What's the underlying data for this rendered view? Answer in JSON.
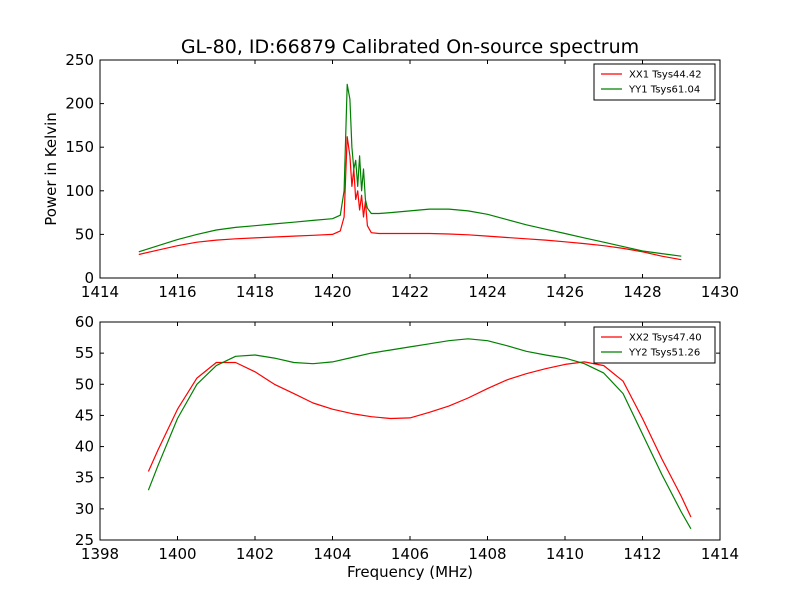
{
  "chart_data": [
    {
      "type": "line",
      "title": "GL-80, ID:66879 Calibrated On-source spectrum",
      "xlabel": "",
      "ylabel": "Power in Kelvin",
      "xlim": [
        1414,
        1430
      ],
      "ylim": [
        0,
        250
      ],
      "xticks": [
        1414,
        1416,
        1418,
        1420,
        1422,
        1424,
        1426,
        1428,
        1430
      ],
      "yticks": [
        0,
        50,
        100,
        150,
        200,
        250
      ],
      "legend_position": "upper right",
      "grid": false,
      "series": [
        {
          "name": "XX1 Tsys44.42",
          "color": "#ff0000",
          "x": [
            1415.0,
            1415.5,
            1416.0,
            1416.5,
            1417.0,
            1417.5,
            1418.0,
            1418.5,
            1419.0,
            1419.5,
            1420.0,
            1420.2,
            1420.3,
            1420.38,
            1420.45,
            1420.5,
            1420.55,
            1420.6,
            1420.65,
            1420.7,
            1420.75,
            1420.8,
            1420.85,
            1420.9,
            1421.0,
            1421.2,
            1421.5,
            1422.0,
            1422.5,
            1423.0,
            1423.5,
            1424.0,
            1424.5,
            1425.0,
            1425.5,
            1426.0,
            1426.5,
            1427.0,
            1427.5,
            1428.0,
            1428.5,
            1429.0
          ],
          "y": [
            27,
            32,
            37,
            41,
            43.5,
            45,
            46,
            47,
            48,
            49,
            50,
            54,
            70,
            162,
            140,
            105,
            125,
            90,
            100,
            78,
            95,
            70,
            88,
            60,
            52,
            51,
            51,
            51,
            51,
            50.5,
            49.5,
            48,
            46.5,
            45,
            43.5,
            41.5,
            39.5,
            37,
            34,
            30,
            25,
            21
          ]
        },
        {
          "name": "YY1 Tsys61.04",
          "color": "#008000",
          "x": [
            1415.0,
            1415.5,
            1416.0,
            1416.5,
            1417.0,
            1417.5,
            1418.0,
            1418.5,
            1419.0,
            1419.5,
            1420.0,
            1420.2,
            1420.3,
            1420.38,
            1420.45,
            1420.5,
            1420.55,
            1420.6,
            1420.65,
            1420.7,
            1420.75,
            1420.8,
            1420.85,
            1420.9,
            1421.0,
            1421.2,
            1421.5,
            1422.0,
            1422.5,
            1423.0,
            1423.5,
            1424.0,
            1424.5,
            1425.0,
            1425.5,
            1426.0,
            1426.5,
            1427.0,
            1427.5,
            1428.0,
            1428.5,
            1429.0
          ],
          "y": [
            30,
            37,
            44,
            50,
            55,
            58,
            60,
            62,
            64,
            66,
            68,
            72,
            100,
            222,
            205,
            150,
            125,
            135,
            105,
            140,
            100,
            125,
            90,
            80,
            74,
            74,
            75,
            77,
            79,
            79,
            77,
            73,
            67,
            61,
            56,
            51,
            46,
            41,
            36,
            31,
            28,
            25
          ]
        }
      ]
    },
    {
      "type": "line",
      "title": "",
      "xlabel": "Frequency (MHz)",
      "ylabel": "",
      "xlim": [
        1398,
        1414
      ],
      "ylim": [
        25,
        60
      ],
      "xticks": [
        1398,
        1400,
        1402,
        1404,
        1406,
        1408,
        1410,
        1412,
        1414
      ],
      "yticks": [
        25,
        30,
        35,
        40,
        45,
        50,
        55,
        60
      ],
      "legend_position": "upper right",
      "grid": false,
      "series": [
        {
          "name": "XX2 Tsys47.40",
          "color": "#ff0000",
          "x": [
            1399.25,
            1399.5,
            1400.0,
            1400.5,
            1401.0,
            1401.5,
            1402.0,
            1402.5,
            1403.0,
            1403.5,
            1404.0,
            1404.5,
            1405.0,
            1405.5,
            1406.0,
            1406.5,
            1407.0,
            1407.5,
            1408.0,
            1408.5,
            1409.0,
            1409.5,
            1410.0,
            1410.5,
            1411.0,
            1411.5,
            1412.0,
            1412.5,
            1413.0,
            1413.25
          ],
          "y": [
            36,
            39.5,
            46,
            51,
            53.5,
            53.5,
            52,
            50,
            48.5,
            47,
            46,
            45.3,
            44.8,
            44.5,
            44.6,
            45.5,
            46.5,
            47.8,
            49.3,
            50.7,
            51.7,
            52.5,
            53.2,
            53.6,
            53,
            50.5,
            44.5,
            38,
            32,
            28.7
          ]
        },
        {
          "name": "YY2 Tsys51.26",
          "color": "#008000",
          "x": [
            1399.25,
            1399.5,
            1400.0,
            1400.5,
            1401.0,
            1401.5,
            1402.0,
            1402.5,
            1403.0,
            1403.5,
            1404.0,
            1404.5,
            1405.0,
            1405.5,
            1406.0,
            1406.5,
            1407.0,
            1407.5,
            1408.0,
            1408.5,
            1409.0,
            1409.5,
            1410.0,
            1410.5,
            1411.0,
            1411.5,
            1412.0,
            1412.5,
            1413.0,
            1413.25
          ],
          "y": [
            33,
            37,
            44.5,
            50,
            53,
            54.5,
            54.7,
            54.2,
            53.5,
            53.3,
            53.6,
            54.3,
            55,
            55.5,
            56,
            56.5,
            57,
            57.3,
            57,
            56.2,
            55.3,
            54.7,
            54.2,
            53.3,
            51.8,
            48.5,
            42,
            35.5,
            29.5,
            26.8
          ]
        }
      ]
    }
  ]
}
